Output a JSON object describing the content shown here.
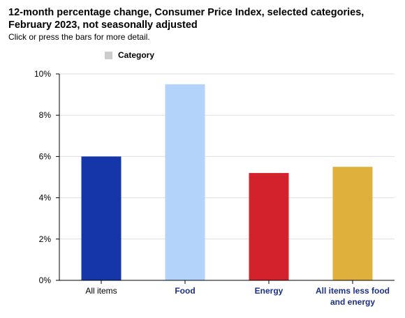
{
  "header": {
    "title": "12-month percentage change, Consumer Price Index, selected categories, February 2023, not seasonally adjusted",
    "subtitle": "Click or press the bars for more detail."
  },
  "legend": {
    "label": "Category",
    "swatch_color": "#cccccc"
  },
  "chart_data": {
    "type": "bar",
    "categories": [
      "All items",
      "Food",
      "Energy",
      "All items less food and energy"
    ],
    "category_lines": [
      [
        "All items"
      ],
      [
        "Food"
      ],
      [
        "Energy"
      ],
      [
        "All items less food",
        "and energy"
      ]
    ],
    "values": [
      6.0,
      9.5,
      5.2,
      5.5
    ],
    "colors": [
      "#1536a8",
      "#b3d3fb",
      "#d4222d",
      "#dfb13c"
    ],
    "label_colors": [
      "#000000",
      "#1a2e8c",
      "#1a2e8c",
      "#1a2e8c"
    ],
    "label_bold": [
      false,
      true,
      true,
      true
    ],
    "yticks": [
      "0%",
      "2%",
      "4%",
      "6%",
      "8%",
      "10%"
    ],
    "ytick_values": [
      0,
      2,
      4,
      6,
      8,
      10
    ],
    "ylim": [
      0,
      10
    ],
    "grid": true,
    "legend_position": "top"
  }
}
